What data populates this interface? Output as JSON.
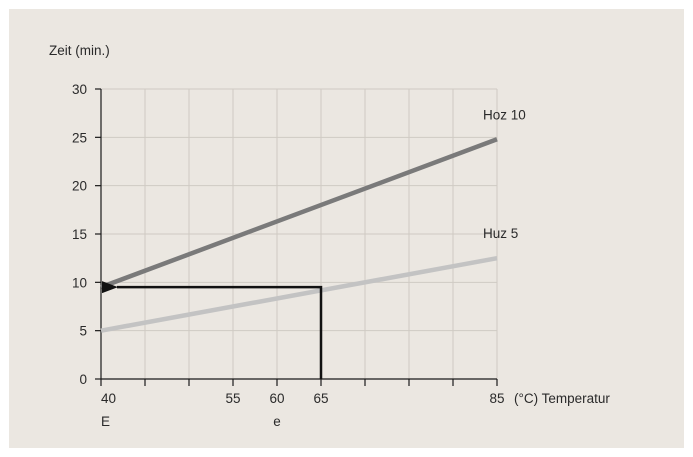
{
  "chart_data": {
    "type": "line",
    "ylabel": "Zeit (min.)",
    "xlabel": "(°C) Temperatur",
    "ylim": [
      0,
      30
    ],
    "xlim": [
      40,
      85
    ],
    "y_ticks": [
      0,
      5,
      10,
      15,
      20,
      25,
      30
    ],
    "x_ticks": [
      40,
      45,
      50,
      55,
      60,
      65,
      70,
      75,
      80,
      85
    ],
    "x_tick_labels": [
      {
        "x": 40,
        "label": "40",
        "sublabel": "E"
      },
      {
        "x": 55,
        "label": "55"
      },
      {
        "x": 60,
        "label": "60",
        "sublabel": "e"
      },
      {
        "x": 65,
        "label": "65"
      },
      {
        "x": 85,
        "label": "85"
      }
    ],
    "grid": true,
    "series": [
      {
        "name": "Hoz 10",
        "x": [
          40,
          85
        ],
        "y": [
          9.5,
          24.8
        ],
        "color": "#7a7a7a"
      },
      {
        "name": "Huz 5",
        "x": [
          40,
          85
        ],
        "y": [
          5,
          12.5
        ],
        "color": "#c3c3c3"
      }
    ],
    "reading_path": {
      "x": [
        65,
        65,
        40
      ],
      "y": [
        0,
        9.5,
        9.5
      ],
      "color": "#111111"
    }
  }
}
